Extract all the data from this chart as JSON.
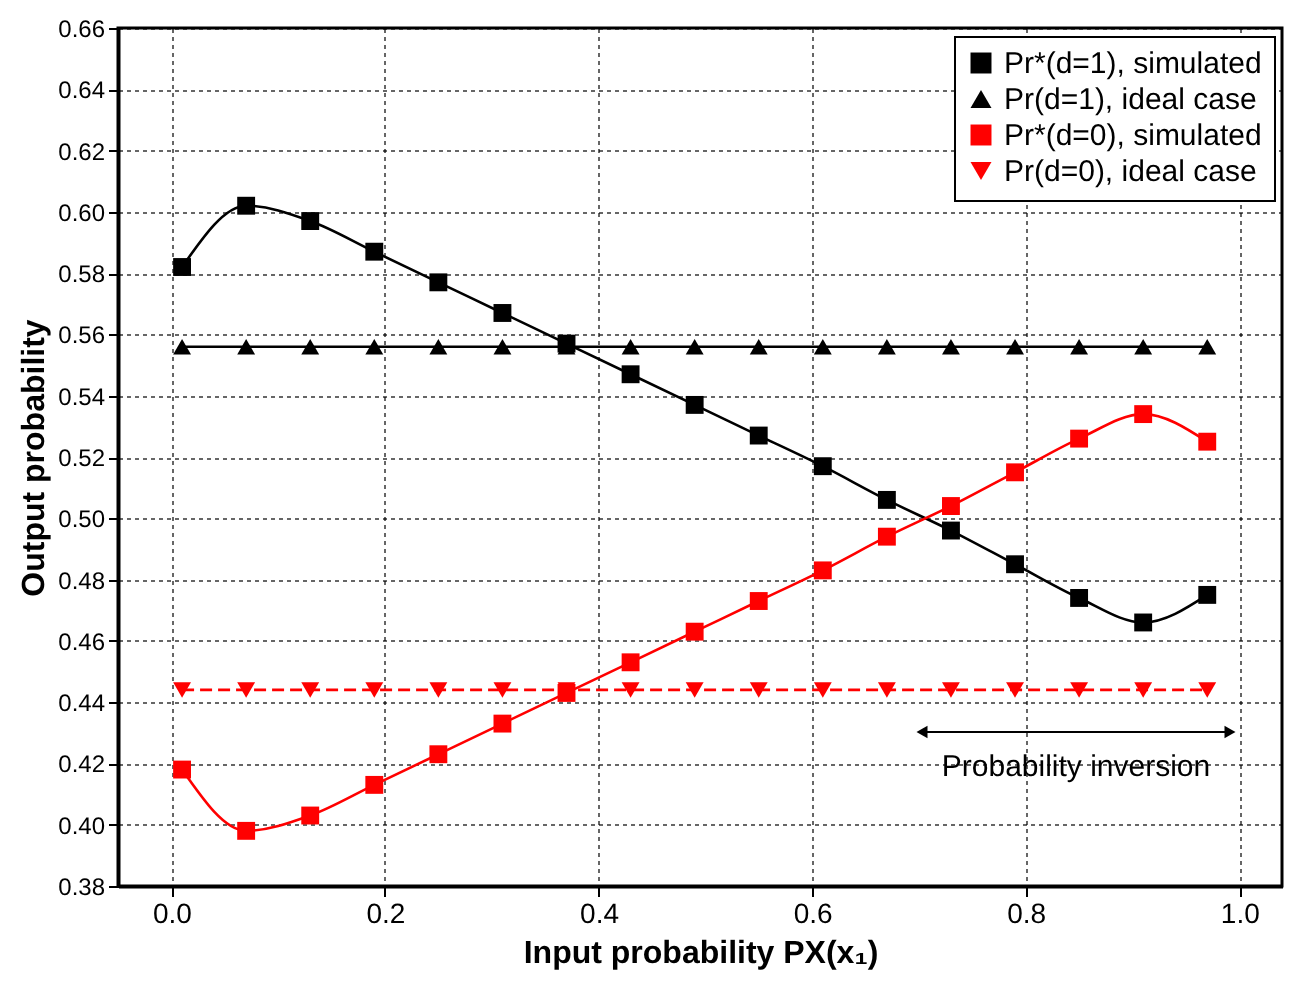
{
  "chart_data": {
    "type": "line",
    "xlabel": "Input probability PX(x₁)",
    "ylabel": "Output probability",
    "x": [
      0.01,
      0.07,
      0.13,
      0.19,
      0.25,
      0.31,
      0.37,
      0.43,
      0.49,
      0.55,
      0.61,
      0.67,
      0.73,
      0.79,
      0.85,
      0.91,
      0.97
    ],
    "series": [
      {
        "name": "Pr*(d=1), simulated",
        "color": "#000000",
        "marker": "square",
        "line_style": "solid",
        "values": [
          0.582,
          0.602,
          0.597,
          0.587,
          0.577,
          0.567,
          0.557,
          0.547,
          0.537,
          0.527,
          0.517,
          0.506,
          0.496,
          0.485,
          0.474,
          0.466,
          0.475
        ]
      },
      {
        "name": "Pr(d=1), ideal case",
        "color": "#000000",
        "marker": "triangle",
        "line_style": "solid",
        "values": [
          0.556,
          0.556,
          0.556,
          0.556,
          0.556,
          0.556,
          0.556,
          0.556,
          0.556,
          0.556,
          0.556,
          0.556,
          0.556,
          0.556,
          0.556,
          0.556,
          0.556
        ]
      },
      {
        "name": "Pr*(d=0), simulated",
        "color": "#ff0000",
        "marker": "square",
        "line_style": "solid",
        "values": [
          0.418,
          0.398,
          0.403,
          0.413,
          0.423,
          0.433,
          0.443,
          0.453,
          0.463,
          0.473,
          0.483,
          0.494,
          0.504,
          0.515,
          0.526,
          0.534,
          0.525
        ]
      },
      {
        "name": "Pr(d=0), ideal case",
        "color": "#ff0000",
        "marker": "triangle-down",
        "line_style": "dashed",
        "values": [
          0.444,
          0.444,
          0.444,
          0.444,
          0.444,
          0.444,
          0.444,
          0.444,
          0.444,
          0.444,
          0.444,
          0.444,
          0.444,
          0.444,
          0.444,
          0.444,
          0.444
        ]
      }
    ],
    "xlim": [
      -0.05,
      1.04
    ],
    "xticks": [
      {
        "value": 0,
        "label": "0.0"
      },
      0.2,
      0.4,
      0.6,
      0.8,
      {
        "value": 1,
        "label": "1.0"
      }
    ],
    "ylim": [
      0.38,
      0.66
    ],
    "yticks": [
      0.38,
      {
        "value": 0.4,
        "label": "0.40"
      },
      0.42,
      0.44,
      0.46,
      0.48,
      {
        "value": 0.5,
        "label": "0.50"
      },
      0.52,
      0.54,
      0.56,
      0.58,
      {
        "value": 0.6,
        "label": "0.60"
      },
      0.62,
      0.64,
      0.66
    ],
    "annotations": [
      "Probability inversion"
    ],
    "grid": true,
    "legend": "top right"
  }
}
